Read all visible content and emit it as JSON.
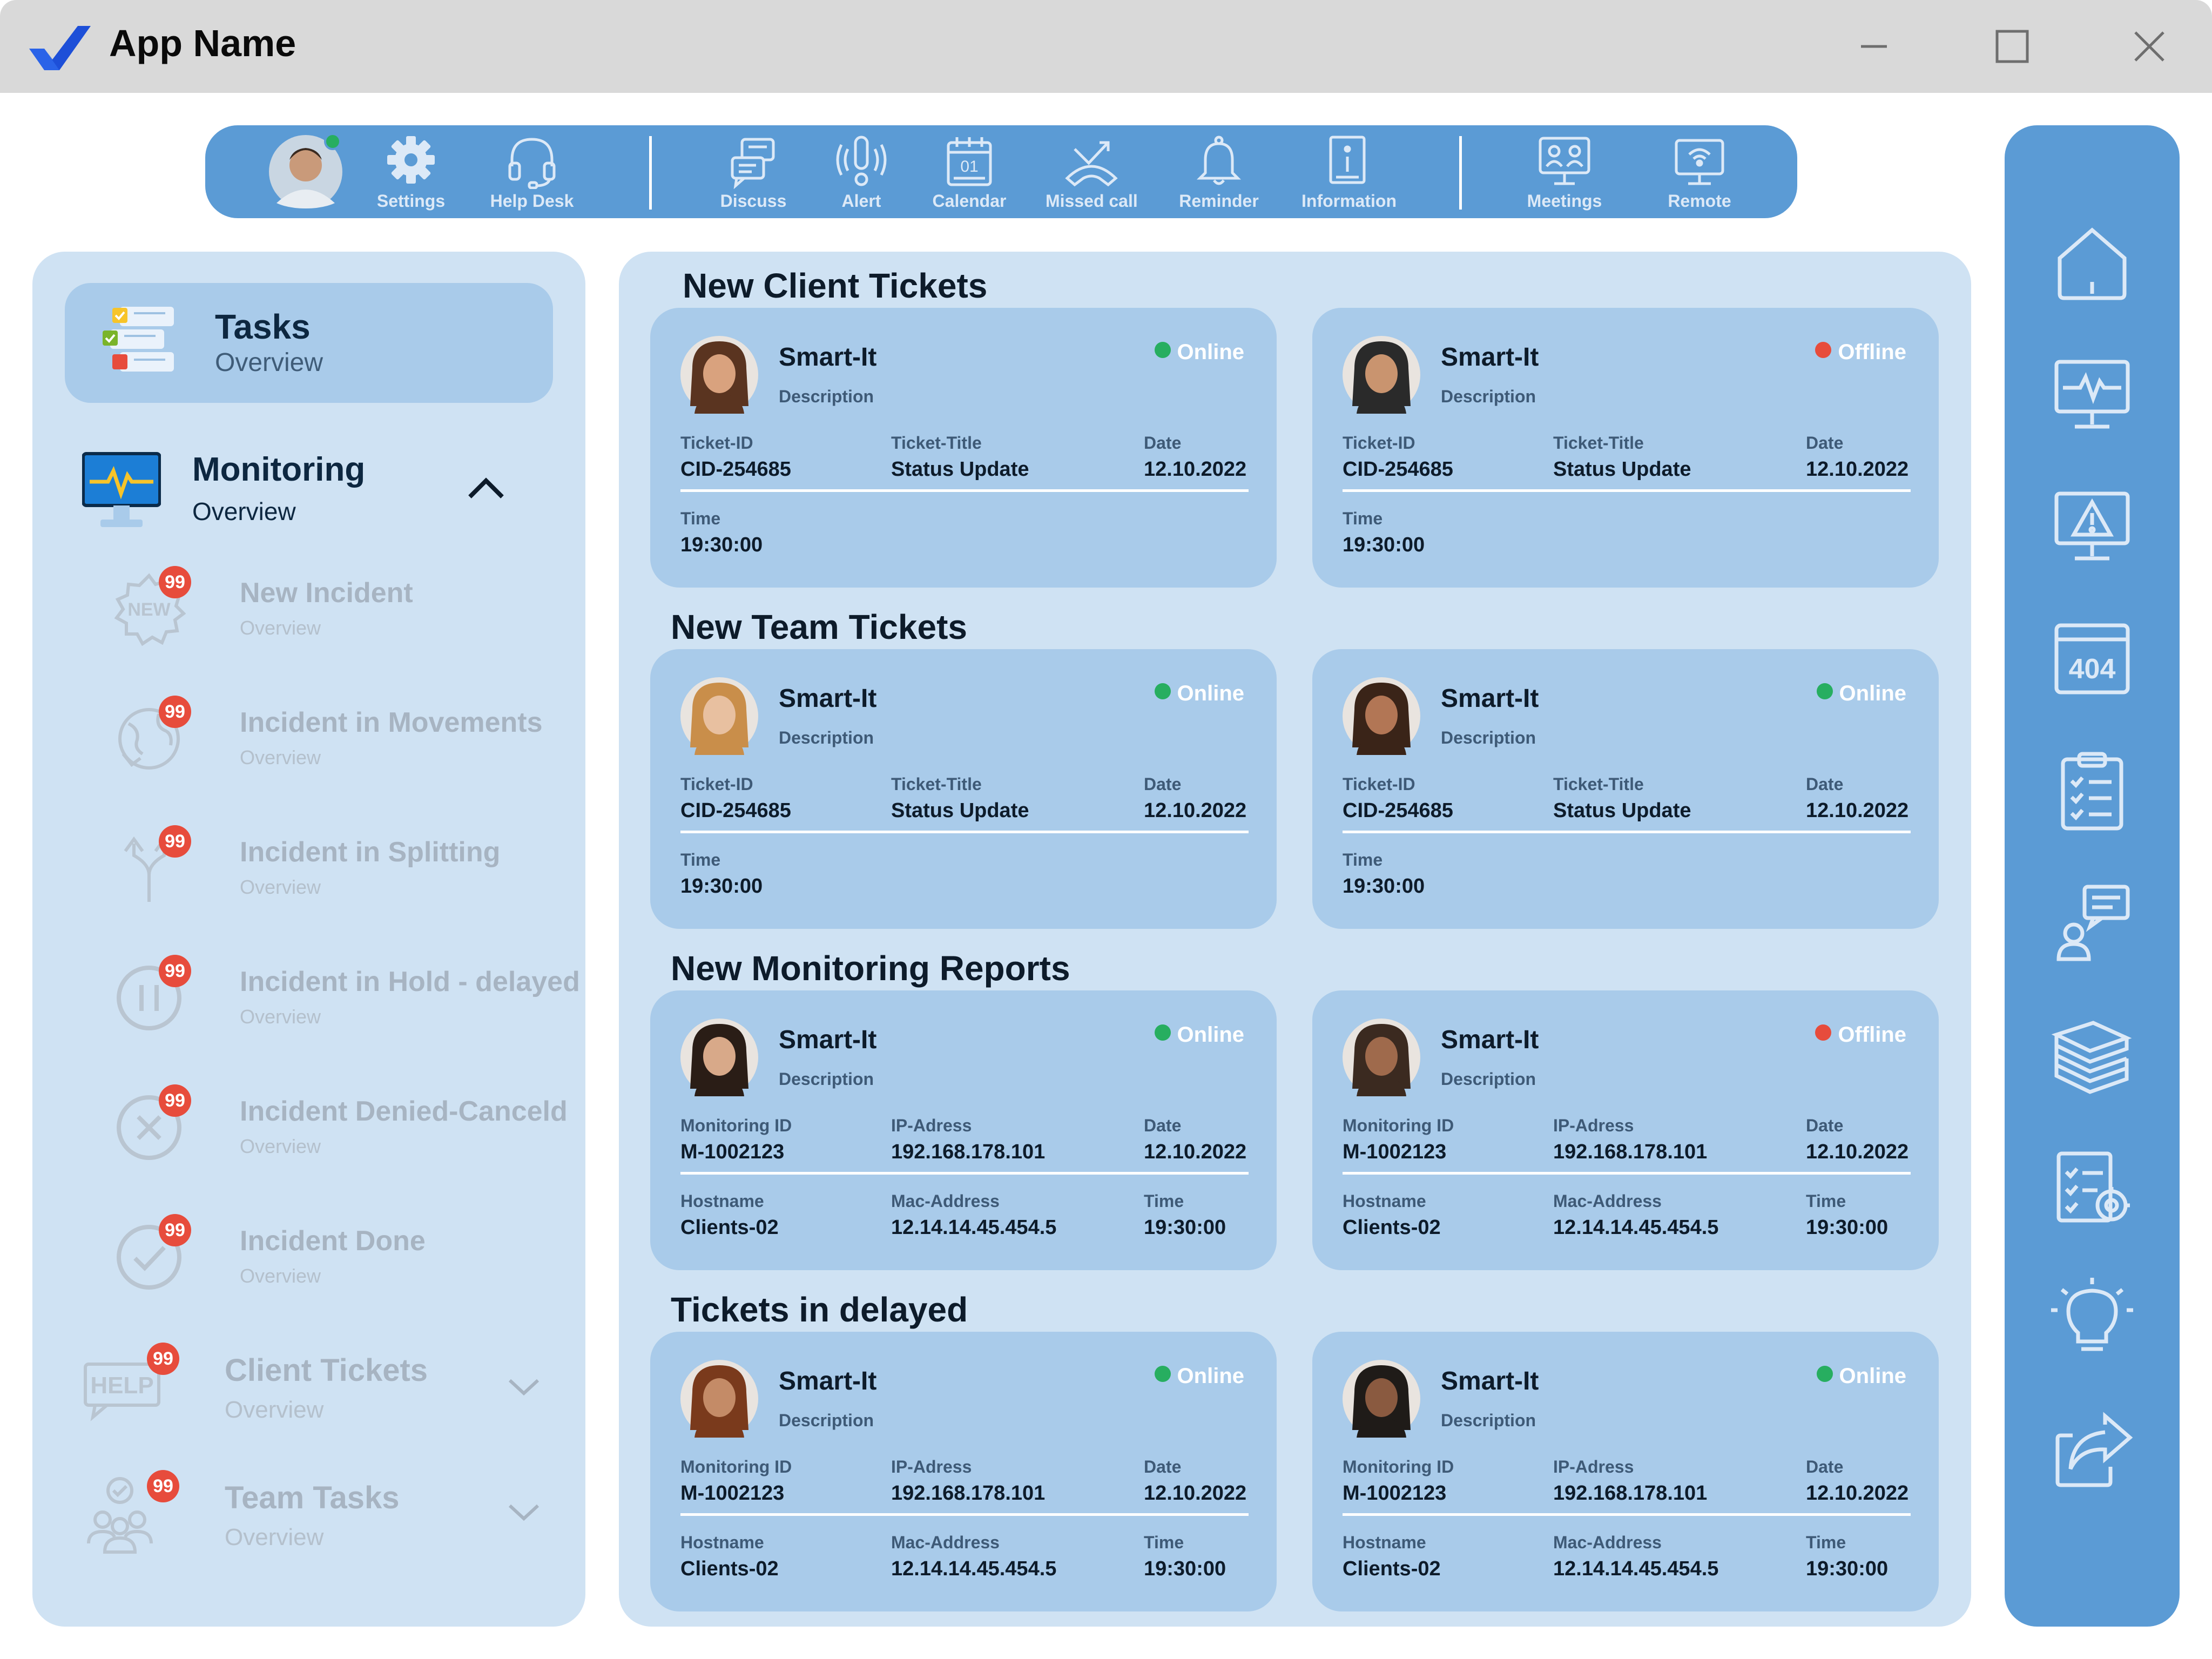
{
  "window": {
    "app_name": "App Name"
  },
  "toolbar": {
    "items": [
      {
        "label": "Settings",
        "icon": "gear-icon"
      },
      {
        "label": "Help Desk",
        "icon": "headset-icon"
      },
      {
        "label": "Discuss",
        "icon": "discuss-icon"
      },
      {
        "label": "Alert",
        "icon": "alert-icon"
      },
      {
        "label": "Calendar",
        "icon": "calendar-icon",
        "day": "01"
      },
      {
        "label": "Missed call",
        "icon": "missed-call-icon"
      },
      {
        "label": "Reminder",
        "icon": "bell-icon"
      },
      {
        "label": "Information",
        "icon": "info-icon"
      },
      {
        "label": "Meetings",
        "icon": "meetings-icon"
      },
      {
        "label": "Remote",
        "icon": "remote-icon"
      }
    ]
  },
  "sidebar": {
    "tasks": {
      "title": "Tasks",
      "subtitle": "Overview"
    },
    "monitoring": {
      "title": "Monitoring",
      "subtitle": "Overview"
    },
    "incidents": [
      {
        "title": "New Incident",
        "subtitle": "Overview",
        "badge": "99",
        "icon_text": "NEW"
      },
      {
        "title": "Incident in Movements",
        "subtitle": "Overview",
        "badge": "99"
      },
      {
        "title": "Incident in Splitting",
        "subtitle": "Overview",
        "badge": "99"
      },
      {
        "title": "Incident in Hold - delayed",
        "subtitle": "Overview",
        "badge": "99"
      },
      {
        "title": "Incident Denied-Canceld",
        "subtitle": "Overview",
        "badge": "99"
      },
      {
        "title": "Incident Done",
        "subtitle": "Overview",
        "badge": "99"
      }
    ],
    "groups": [
      {
        "title": "Client Tickets",
        "subtitle": "Overview",
        "badge": "99",
        "icon_text": "HELP"
      },
      {
        "title": "Team Tasks",
        "subtitle": "Overview",
        "badge": "99"
      }
    ]
  },
  "sections": [
    {
      "title": "New Client Tickets",
      "cards": [
        {
          "name": "Smart-It",
          "desc": "Description",
          "status": "Online",
          "status_color": "#27ae60",
          "f1_label": "Ticket-ID",
          "f1_value": "CID-254685",
          "f2_label": "Ticket-Title",
          "f2_value": "Status Update",
          "f3_label": "Date",
          "f3_value": "12.10.2022",
          "g1_label": "Time",
          "g1_value": "19:30:00",
          "g2_label": "",
          "g2_value": "",
          "g3_label": "",
          "g3_value": ""
        },
        {
          "name": "Smart-It",
          "desc": "Description",
          "status": "Offline",
          "status_color": "#e74c3c",
          "f1_label": "Ticket-ID",
          "f1_value": "CID-254685",
          "f2_label": "Ticket-Title",
          "f2_value": "Status Update",
          "f3_label": "Date",
          "f3_value": "12.10.2022",
          "g1_label": "Time",
          "g1_value": "19:30:00",
          "g2_label": "",
          "g2_value": "",
          "g3_label": "",
          "g3_value": ""
        }
      ]
    },
    {
      "title": "New Team Tickets",
      "cards": [
        {
          "name": "Smart-It",
          "desc": "Description",
          "status": "Online",
          "status_color": "#27ae60",
          "f1_label": "Ticket-ID",
          "f1_value": "CID-254685",
          "f2_label": "Ticket-Title",
          "f2_value": "Status Update",
          "f3_label": "Date",
          "f3_value": "12.10.2022",
          "g1_label": "Time",
          "g1_value": "19:30:00",
          "g2_label": "",
          "g2_value": "",
          "g3_label": "",
          "g3_value": ""
        },
        {
          "name": "Smart-It",
          "desc": "Description",
          "status": "Online",
          "status_color": "#27ae60",
          "f1_label": "Ticket-ID",
          "f1_value": "CID-254685",
          "f2_label": "Ticket-Title",
          "f2_value": "Status Update",
          "f3_label": "Date",
          "f3_value": "12.10.2022",
          "g1_label": "Time",
          "g1_value": "19:30:00",
          "g2_label": "",
          "g2_value": "",
          "g3_label": "",
          "g3_value": ""
        }
      ]
    },
    {
      "title": "New Monitoring Reports",
      "cards": [
        {
          "name": "Smart-It",
          "desc": "Description",
          "status": "Online",
          "status_color": "#27ae60",
          "f1_label": "Monitoring ID",
          "f1_value": "M-1002123",
          "f2_label": "IP-Adress",
          "f2_value": "192.168.178.101",
          "f3_label": "Date",
          "f3_value": "12.10.2022",
          "g1_label": "Hostname",
          "g1_value": "Clients-02",
          "g2_label": "Mac-Address",
          "g2_value": "12.14.14.45.454.5",
          "g3_label": "Time",
          "g3_value": "19:30:00"
        },
        {
          "name": "Smart-It",
          "desc": "Description",
          "status": "Offline",
          "status_color": "#e74c3c",
          "f1_label": "Monitoring ID",
          "f1_value": "M-1002123",
          "f2_label": "IP-Adress",
          "f2_value": "192.168.178.101",
          "f3_label": "Date",
          "f3_value": "12.10.2022",
          "g1_label": "Hostname",
          "g1_value": "Clients-02",
          "g2_label": "Mac-Address",
          "g2_value": "12.14.14.45.454.5",
          "g3_label": "Time",
          "g3_value": "19:30:00"
        }
      ]
    },
    {
      "title": "Tickets in delayed",
      "cards": [
        {
          "name": "Smart-It",
          "desc": "Description",
          "status": "Online",
          "status_color": "#27ae60",
          "f1_label": "Monitoring ID",
          "f1_value": "M-1002123",
          "f2_label": "IP-Adress",
          "f2_value": "192.168.178.101",
          "f3_label": "Date",
          "f3_value": "12.10.2022",
          "g1_label": "Hostname",
          "g1_value": "Clients-02",
          "g2_label": "Mac-Address",
          "g2_value": "12.14.14.45.454.5",
          "g3_label": "Time",
          "g3_value": "19:30:00"
        },
        {
          "name": "Smart-It",
          "desc": "Description",
          "status": "Online",
          "status_color": "#27ae60",
          "f1_label": "Monitoring ID",
          "f1_value": "M-1002123",
          "f2_label": "IP-Adress",
          "f2_value": "192.168.178.101",
          "f3_label": "Date",
          "f3_value": "12.10.2022",
          "g1_label": "Hostname",
          "g1_value": "Clients-02",
          "g2_label": "Mac-Address",
          "g2_value": "12.14.14.45.454.5",
          "g3_label": "Time",
          "g3_value": "19:30:00"
        }
      ]
    }
  ],
  "right_sidebar": {
    "icons": [
      "home-icon",
      "monitor-pulse-icon",
      "warning-monitor-icon",
      "error-404-icon",
      "checklist-icon",
      "user-chat-icon",
      "books-icon",
      "report-settings-icon",
      "lightbulb-icon",
      "share-icon"
    ],
    "error_text": "404"
  }
}
